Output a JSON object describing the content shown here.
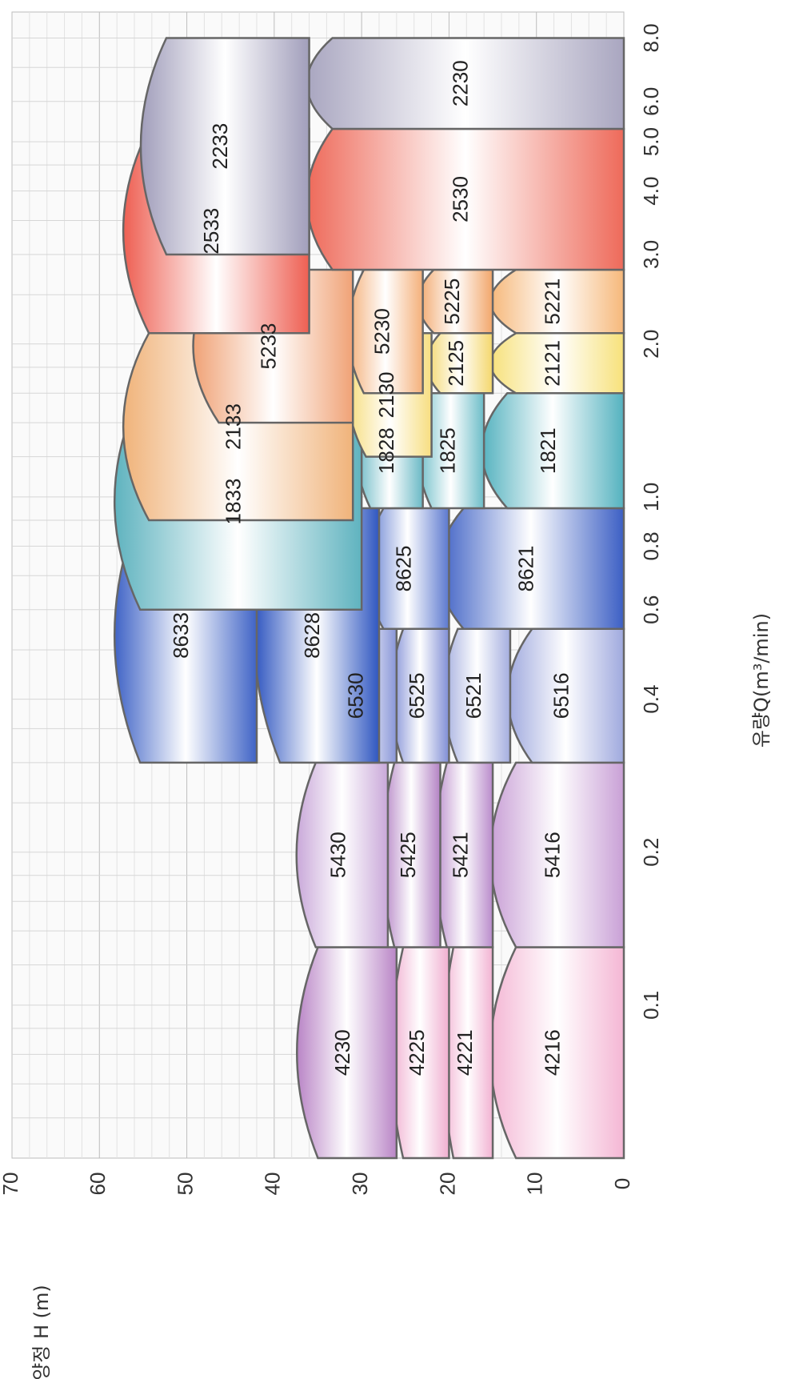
{
  "chart_data": {
    "type": "area",
    "title": "",
    "xlabel": "유량Q(m³/min)",
    "ylabel": "양정 H (m)",
    "x_ticks": [
      "0.1",
      "0.2",
      "0.4",
      "0.6",
      "0.8",
      "1.0",
      "2.0",
      "3.0",
      "4.0",
      "5.0",
      "6.0",
      "8.0"
    ],
    "y_ticks": [
      "0",
      "10",
      "20",
      "30",
      "40",
      "50",
      "60",
      "70"
    ],
    "ylim": [
      0,
      70
    ],
    "x_scale": "log",
    "xlim": [
      0.05,
      9.0
    ],
    "grid": true,
    "orientation": "rotated-90",
    "zones": [
      {
        "label": "4216",
        "q_range": [
          0.05,
          0.13
        ],
        "h_range": [
          0,
          16
        ],
        "color": "#f4b6d4"
      },
      {
        "label": "4221",
        "q_range": [
          0.05,
          0.13
        ],
        "h_range": [
          15,
          21
        ],
        "color": "#f2b2d2"
      },
      {
        "label": "4225",
        "q_range": [
          0.05,
          0.13
        ],
        "h_range": [
          20,
          27
        ],
        "color": "#f0aed0"
      },
      {
        "label": "4230",
        "q_range": [
          0.05,
          0.13
        ],
        "h_range": [
          26,
          38
        ],
        "color": "#b985c6"
      },
      {
        "label": "5416",
        "q_range": [
          0.13,
          0.3
        ],
        "h_range": [
          0,
          16
        ],
        "color": "#c9a0d6"
      },
      {
        "label": "5421",
        "q_range": [
          0.13,
          0.3
        ],
        "h_range": [
          15,
          22
        ],
        "color": "#b98bcb"
      },
      {
        "label": "5425",
        "q_range": [
          0.13,
          0.3
        ],
        "h_range": [
          21,
          28
        ],
        "color": "#b382c4"
      },
      {
        "label": "5430",
        "q_range": [
          0.13,
          0.3
        ],
        "h_range": [
          27,
          38
        ],
        "color": "#c9a8d9"
      },
      {
        "label": "6516",
        "q_range": [
          0.3,
          0.55
        ],
        "h_range": [
          0,
          14
        ],
        "color": "#9fa9de"
      },
      {
        "label": "6521",
        "q_range": [
          0.3,
          0.55
        ],
        "h_range": [
          13,
          21
        ],
        "color": "#a4aedf"
      },
      {
        "label": "6525",
        "q_range": [
          0.3,
          0.55
        ],
        "h_range": [
          20,
          27
        ],
        "color": "#7f8dd5"
      },
      {
        "label": "6530",
        "q_range": [
          0.3,
          0.55
        ],
        "h_range": [
          26,
          35
        ],
        "color": "#8996d8"
      },
      {
        "label": "8621",
        "q_range": [
          0.55,
          0.95
        ],
        "h_range": [
          0,
          22
        ],
        "color": "#3c5fc4"
      },
      {
        "label": "8625",
        "q_range": [
          0.55,
          0.95
        ],
        "h_range": [
          20,
          30
        ],
        "color": "#5b78cf"
      },
      {
        "label": "8628",
        "q_range": [
          0.3,
          0.95
        ],
        "h_range": [
          28,
          43
        ],
        "color": "#2f56c0"
      },
      {
        "label": "8633",
        "q_range": [
          0.3,
          0.95
        ],
        "h_range": [
          42,
          59
        ],
        "color": "#3f63c6"
      },
      {
        "label": "1821",
        "q_range": [
          0.95,
          1.6
        ],
        "h_range": [
          0,
          17
        ],
        "color": "#54b2bf"
      },
      {
        "label": "1825",
        "q_range": [
          0.95,
          1.6
        ],
        "h_range": [
          16,
          24
        ],
        "color": "#6cbdc8"
      },
      {
        "label": "1828",
        "q_range": [
          0.95,
          1.6
        ],
        "h_range": [
          23,
          31
        ],
        "color": "#6ab9c5"
      },
      {
        "label": "1833",
        "q_range": [
          0.6,
          1.6
        ],
        "h_range": [
          30,
          59
        ],
        "color": "#5fb3bf"
      },
      {
        "label": "2121",
        "q_range": [
          1.6,
          2.1
        ],
        "h_range": [
          0,
          16
        ],
        "color": "#f7e17a"
      },
      {
        "label": "2125",
        "q_range": [
          1.6,
          2.1
        ],
        "h_range": [
          15,
          23
        ],
        "color": "#f4d76c"
      },
      {
        "label": "2130",
        "q_range": [
          1.2,
          2.1
        ],
        "h_range": [
          22,
          32
        ],
        "color": "#f7de80"
      },
      {
        "label": "2133",
        "q_range": [
          0.9,
          2.1
        ],
        "h_range": [
          31,
          58
        ],
        "color": "#f0b37a"
      },
      {
        "label": "5221",
        "q_range": [
          2.1,
          2.8
        ],
        "h_range": [
          0,
          16
        ],
        "color": "#f6b87a"
      },
      {
        "label": "5225",
        "q_range": [
          2.1,
          2.8
        ],
        "h_range": [
          15,
          24
        ],
        "color": "#f2a66a"
      },
      {
        "label": "5230",
        "q_range": [
          1.6,
          2.8
        ],
        "h_range": [
          23,
          32
        ],
        "color": "#f4b07a"
      },
      {
        "label": "5233",
        "q_range": [
          1.4,
          2.8
        ],
        "h_range": [
          31,
          50
        ],
        "color": "#f0a276"
      },
      {
        "label": "2530",
        "q_range": [
          2.8,
          5.3
        ],
        "h_range": [
          0,
          37
        ],
        "color": "#ee6a5a"
      },
      {
        "label": "2533",
        "q_range": [
          2.1,
          5.3
        ],
        "h_range": [
          36,
          58
        ],
        "color": "#ee5f52"
      },
      {
        "label": "2230",
        "q_range": [
          5.3,
          8.0
        ],
        "h_range": [
          0,
          37
        ],
        "color": "#a9a6c0"
      },
      {
        "label": "2233",
        "q_range": [
          3.0,
          8.0
        ],
        "h_range": [
          36,
          56
        ],
        "color": "#a19ebb"
      }
    ]
  }
}
